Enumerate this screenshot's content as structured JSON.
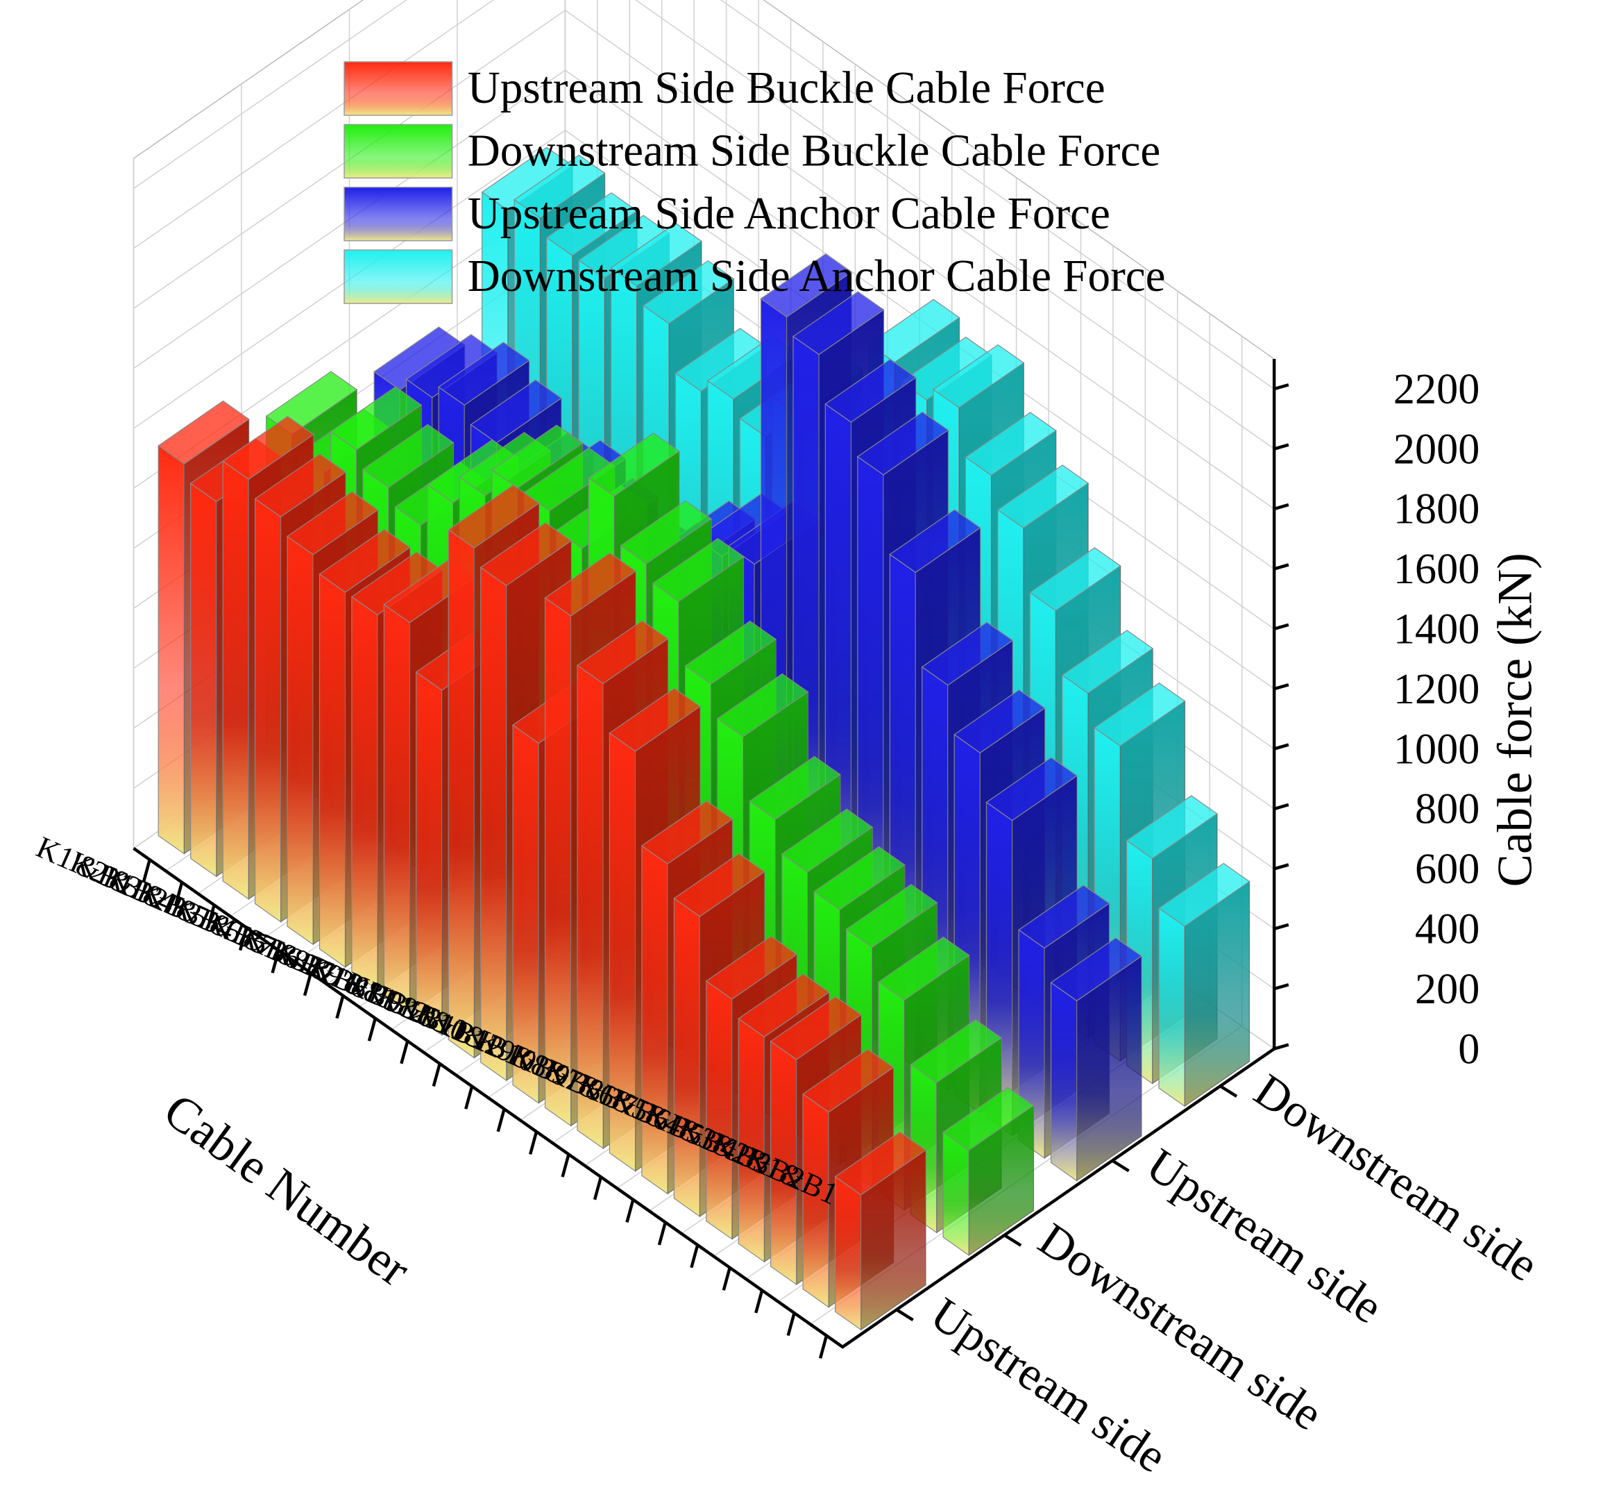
{
  "chart_data": {
    "type": "bar3d",
    "x_label": "Cable Number",
    "y_label": "Cable force (kN)",
    "categories": [
      "K1'&B1",
      "K2'&B2",
      "K3'&B3",
      "K4'&B4",
      "K5'&B5",
      "K6'&B6",
      "K7'&B7",
      "K8'&B8",
      "K9'&B9",
      "K10'&B10",
      "K11'&B11",
      "K12'&B12",
      "K10&B10",
      "K9&B9",
      "K8&B8",
      "K7&B7",
      "K6&B6",
      "K5&B5",
      "K4&B4",
      "K3&B3",
      "K2&B2",
      "K1&B1"
    ],
    "depth_categories": [
      "Upstream side",
      "Downstream side",
      "Upstream side",
      "Downstream side"
    ],
    "series": [
      {
        "name": "Upstream Side Buckle Cable Force",
        "color": "#ff2a10",
        "values": [
          1300,
          1250,
          1400,
          1350,
          1300,
          1250,
          1250,
          1300,
          1150,
          1700,
          1650,
          1200,
          1700,
          1550,
          1400,
          1100,
          1000,
          800,
          750,
          750,
          650,
          450
        ]
      },
      {
        "name": "Downstream Side Buckle Cable Force",
        "color": "#22ee10",
        "values": [
          1150,
          1100,
          1250,
          1200,
          1150,
          1300,
          1400,
          1500,
          1500,
          1450,
          1700,
          1550,
          1500,
          1300,
          1200,
          1000,
          900,
          850,
          800,
          700,
          500,
          350
        ]
      },
      {
        "name": "Upstream Side Anchor Cable Force",
        "color": "#2020e8",
        "values": [
          1050,
          1100,
          1150,
          1100,
          1000,
          1050,
          1000,
          950,
          1000,
          1150,
          1250,
          1300,
          2200,
          2150,
          2000,
          1900,
          1650,
          1350,
          1200,
          1050,
          700,
          600
        ]
      },
      {
        "name": "Downstream Side Anchor Cable Force",
        "color": "#20f0f0",
        "values": [
          1400,
          1450,
          1400,
          1400,
          1450,
          1400,
          1250,
          1300,
          1250,
          1400,
          1350,
          1400,
          1800,
          1750,
          1800,
          1650,
          1550,
          1350,
          1150,
          1050,
          750,
          600
        ]
      }
    ],
    "ylim": [
      0,
      2300
    ],
    "yticks": [
      0,
      200,
      400,
      600,
      800,
      1000,
      1200,
      1400,
      1600,
      1800,
      2000,
      2200
    ],
    "grid": true
  }
}
